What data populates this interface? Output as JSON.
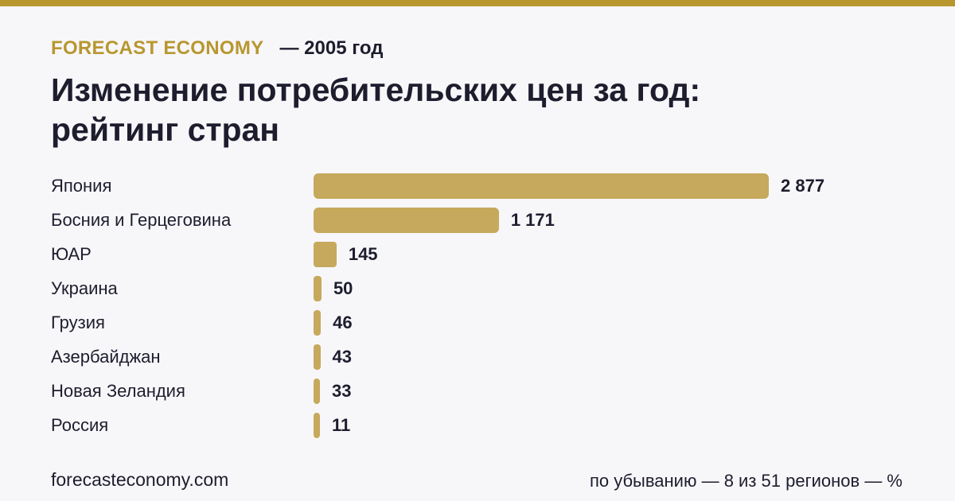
{
  "header": {
    "brand": "FORECAST ECONOMY",
    "year_label": "— 2005 год"
  },
  "title_lines": [
    "Изменение потребительских цен за год:",
    "рейтинг стран"
  ],
  "colors": {
    "accent": "#b8972f",
    "bar": "#c6a95c",
    "text": "#1d1d2e",
    "background": "#f7f7fa"
  },
  "chart_data": {
    "type": "bar",
    "orientation": "horizontal",
    "title": "Изменение потребительских цен за год: рейтинг стран",
    "categories": [
      "Япония",
      "Босния и Герцеговина",
      "ЮАР",
      "Украина",
      "Грузия",
      "Азербайджан",
      "Новая Зеландия",
      "Россия"
    ],
    "values": [
      2877,
      1171,
      145,
      50,
      46,
      43,
      33,
      11
    ],
    "value_labels": [
      "2 877",
      "1 171",
      "145",
      "50",
      "46",
      "43",
      "33",
      "11"
    ],
    "xlabel": "",
    "ylabel": "",
    "grid": false,
    "legend": false,
    "xlim": [
      0,
      2877
    ]
  },
  "footer": {
    "site": "forecasteconomy.com",
    "note": "по убыванию — 8 из 51 регионов — %"
  }
}
